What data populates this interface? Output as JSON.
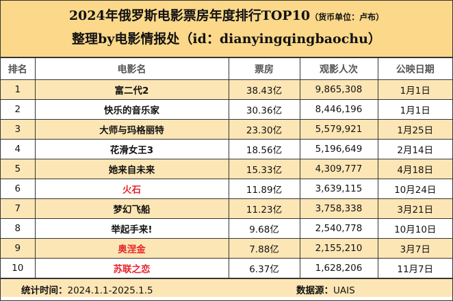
{
  "header": {
    "title": "2024年俄罗斯电影票房年度排行TOP10",
    "unit_note": "（货币单位：卢布）",
    "subtitle": "整理by电影情报处（id：dianyingqingbaochu）"
  },
  "table": {
    "columns": [
      "排名",
      "电影名",
      "票房",
      "观影人次",
      "公映日期"
    ],
    "rows": [
      {
        "rank": "1",
        "title": "富二代2",
        "box_office": "38.43亿",
        "admissions": "9,865,308",
        "release": "1月1日",
        "highlight": false
      },
      {
        "rank": "2",
        "title": "快乐的音乐家",
        "box_office": "30.36亿",
        "admissions": "8,446,196",
        "release": "1月1日",
        "highlight": false
      },
      {
        "rank": "3",
        "title": "大师与玛格丽特",
        "box_office": "23.30亿",
        "admissions": "5,579,921",
        "release": "1月25日",
        "highlight": false
      },
      {
        "rank": "4",
        "title": "花滑女王3",
        "box_office": "18.56亿",
        "admissions": "5,196,649",
        "release": "2月14日",
        "highlight": false
      },
      {
        "rank": "5",
        "title": "她来自未来",
        "box_office": "15.33亿",
        "admissions": "4,309,777",
        "release": "4月18日",
        "highlight": false
      },
      {
        "rank": "6",
        "title": "火石",
        "box_office": "11.89亿",
        "admissions": "3,639,115",
        "release": "10月24日",
        "highlight": true
      },
      {
        "rank": "7",
        "title": "梦幻飞船",
        "box_office": "11.23亿",
        "admissions": "3,758,338",
        "release": "3月21日",
        "highlight": false
      },
      {
        "rank": "8",
        "title": "举起手来!",
        "box_office": "9.68亿",
        "admissions": "2,540,778",
        "release": "10月10日",
        "highlight": false
      },
      {
        "rank": "9",
        "title": "奥涅金",
        "box_office": "7.88亿",
        "admissions": "2,155,210",
        "release": "3月7日",
        "highlight": true
      },
      {
        "rank": "10",
        "title": "苏联之恋",
        "box_office": "6.37亿",
        "admissions": "1,628,206",
        "release": "11月7日",
        "highlight": true
      }
    ]
  },
  "footer": {
    "period_label": "统计时间：",
    "period_value": "2024.1.1-2025.1.5",
    "source_label": "数据源：",
    "source_value": "UAIS"
  },
  "colors": {
    "header_bg": "#fbd88a",
    "stripe_bg": "#fde6b5",
    "highlight_text": "#e8242b"
  }
}
